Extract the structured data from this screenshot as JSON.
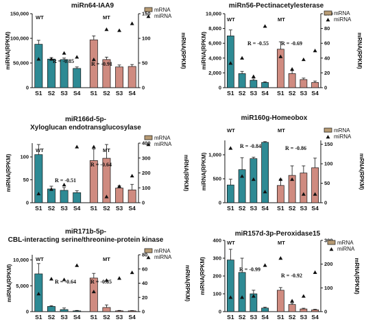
{
  "colors": {
    "wt_bar": "#2e8a94",
    "mt_bar": "#cf8b80",
    "mrna_legend": "#b79b74",
    "axis": "#111111",
    "mirna_marker": "#111111"
  },
  "legend": {
    "mrna": "mRNA",
    "mirna": "miRNA"
  },
  "groups": {
    "wt": "WT",
    "mt": "MT"
  },
  "chart_data": [
    {
      "type": "bar",
      "title": [
        "miRn64-IAA9"
      ],
      "categories": [
        "S1",
        "S2",
        "S3",
        "S4",
        "S1",
        "S2",
        "S3",
        "S4"
      ],
      "ylabel": "miRNA(RPKM)",
      "ylabel_right": "mRNA(RPKM)",
      "ylim": [
        0,
        150000
      ],
      "yticks": [
        0,
        50000,
        100000,
        150000
      ],
      "yticklabels": [
        "0",
        "50,000",
        "100,000",
        "150,000"
      ],
      "y2lim": [
        0,
        150
      ],
      "y2ticks": [
        0,
        50,
        100,
        150
      ],
      "series": [
        {
          "name": "mRNA",
          "values": [
            88000,
            58000,
            57000,
            39000,
            97000,
            57000,
            42000,
            43000
          ],
          "errors": [
            8000,
            3000,
            3000,
            3000,
            8000,
            5000,
            4000,
            4000
          ]
        },
        {
          "name": "miRNA",
          "values": [
            58,
            58,
            70,
            62,
            57,
            118,
            116,
            130
          ]
        }
      ],
      "r_values": [
        "R = -0.85",
        "R = -0.91"
      ]
    },
    {
      "type": "bar",
      "title": [
        "miRn56-Pectinacetylesterase"
      ],
      "categories": [
        "S1",
        "S2",
        "S3",
        "S4",
        "S1",
        "S2",
        "S3",
        "S4"
      ],
      "ylabel": "miRNA(RPKM)",
      "ylabel_right": "mRNA(RPKM)",
      "ylim": [
        0,
        10000
      ],
      "yticks": [
        0,
        2000,
        4000,
        6000,
        8000,
        10000
      ],
      "yticklabels": [
        "0",
        "2,000",
        "4,000",
        "6,000",
        "8,000",
        "10,000"
      ],
      "y2lim": [
        0,
        100
      ],
      "y2ticks": [
        0,
        20,
        40,
        60,
        80,
        100
      ],
      "series": [
        {
          "name": "mRNA",
          "values": [
            7000,
            1900,
            1000,
            700,
            5200,
            1900,
            1100,
            700
          ],
          "errors": [
            800,
            300,
            200,
            100,
            1000,
            400,
            200,
            200
          ]
        },
        {
          "name": "miRNA",
          "values": [
            33,
            40,
            15,
            83,
            42,
            25,
            38,
            50
          ]
        }
      ],
      "r_values": [
        "R = -0.55",
        "R = -0.69"
      ]
    },
    {
      "type": "bar",
      "title": [
        "miR166d-5p-",
        "Xyloglucan endotransglucosylase"
      ],
      "categories": [
        "S1",
        "S2",
        "S3",
        "S4",
        "S1",
        "S2",
        "S3",
        "S4"
      ],
      "ylabel": "miRNA(RPKM)",
      "ylabel_right": "mRNA(RPKM)",
      "ylim": [
        0,
        130
      ],
      "yticks": [
        0,
        50,
        100
      ],
      "yticklabels": [
        "0",
        "50",
        "100"
      ],
      "y2lim": [
        0,
        400
      ],
      "y2ticks": [
        0,
        100,
        200,
        300,
        400
      ],
      "series": [
        {
          "name": "mRNA",
          "values": [
            105,
            30,
            27,
            22,
            92,
            97,
            32,
            28
          ],
          "errors": [
            22,
            6,
            6,
            4,
            25,
            30,
            5,
            12
          ]
        },
        {
          "name": "miRNA",
          "values": [
            60,
            90,
            120,
            375,
            375,
            40,
            110,
            180
          ]
        }
      ],
      "r_values": [
        "R = -0.51",
        "R = -0.64"
      ]
    },
    {
      "type": "bar",
      "title": [
        "miR160g-Homeobox"
      ],
      "categories": [
        "S1",
        "S2",
        "S3",
        "S4",
        "S1",
        "S2",
        "S3",
        "S4"
      ],
      "ylabel": "miRNA(RPKM)",
      "ylabel_right": "mRNA(RPKM)",
      "ylim": [
        0,
        1300
      ],
      "yticks": [
        0,
        500,
        1000
      ],
      "yticklabels": [
        "0",
        "500",
        "1,000"
      ],
      "y2lim": [
        0,
        160
      ],
      "y2ticks": [
        0,
        50,
        100,
        150
      ],
      "series": [
        {
          "name": "mRNA",
          "values": [
            370,
            690,
            920,
            1260,
            360,
            570,
            620,
            730
          ],
          "errors": [
            120,
            250,
            30,
            15,
            130,
            200,
            150,
            200
          ]
        },
        {
          "name": "miRNA",
          "values": [
            140,
            68,
            60,
            28,
            60,
            60,
            22,
            22
          ]
        }
      ],
      "r_values": [
        "R = -0.84",
        "R = -0.86"
      ]
    },
    {
      "type": "bar",
      "title": [
        "miR171b-5p-",
        "CBL-interacting serine/threonine-protein kinase"
      ],
      "categories": [
        "S1",
        "S2",
        "S3",
        "S4",
        "S1",
        "S2",
        "S3",
        "S4"
      ],
      "ylabel": "miRNA(RPKM)",
      "ylabel_right": "mRNA(RPKM)",
      "ylim": [
        0,
        11000
      ],
      "yticks": [
        0,
        5000,
        10000
      ],
      "yticklabels": [
        "0",
        "5,000",
        "10,000"
      ],
      "y2lim": [
        0,
        80
      ],
      "y2ticks": [
        0,
        20,
        40,
        60,
        80
      ],
      "series": [
        {
          "name": "mRNA",
          "values": [
            7300,
            1000,
            400,
            150,
            6500,
            800,
            150,
            150
          ],
          "errors": [
            2000,
            150,
            300,
            80,
            900,
            500,
            80,
            50
          ]
        },
        {
          "name": "miRNA",
          "values": [
            25,
            46,
            45,
            65,
            28,
            44,
            47,
            55
          ]
        }
      ],
      "r_values": [
        "R = -0.64",
        "R = -0.85"
      ]
    },
    {
      "type": "bar",
      "title": [
        "miR157d-3p-Peroxidase15"
      ],
      "categories": [
        "S1",
        "S2",
        "S3",
        "S4",
        "S1",
        "S2",
        "S3",
        "S4"
      ],
      "ylabel": "miRNA(RPKM)",
      "ylabel_right": "mRNA(RPKM)",
      "ylim": [
        0,
        400
      ],
      "yticks": [
        0,
        100,
        200,
        300,
        400
      ],
      "yticklabels": [
        "0",
        "100",
        "200",
        "300",
        "400"
      ],
      "y2lim": [
        0,
        300
      ],
      "y2ticks": [
        0,
        100,
        200,
        300
      ],
      "series": [
        {
          "name": "mRNA",
          "values": [
            290,
            220,
            100,
            20,
            120,
            40,
            15,
            10
          ],
          "errors": [
            60,
            80,
            20,
            5,
            15,
            8,
            4,
            3
          ]
        },
        {
          "name": "miRNA",
          "values": [
            60,
            60,
            65,
            195,
            225,
            45,
            65,
            165
          ]
        }
      ],
      "r_values": [
        "R = -0.99",
        "R = -0.92"
      ]
    }
  ]
}
